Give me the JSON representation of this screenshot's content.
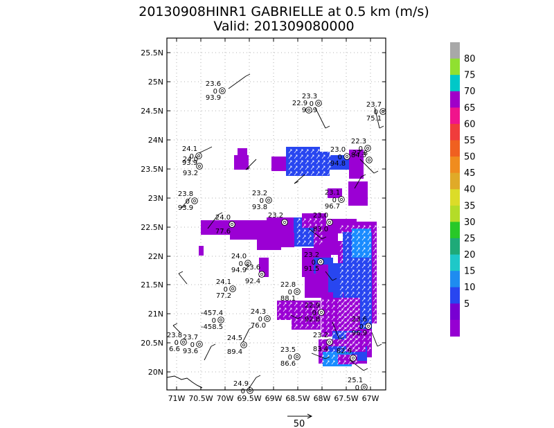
{
  "title": "20130908HINR1 GABRIELLE at 0.5 km (m/s)",
  "subtitle": "Valid: 201309080000",
  "map": {
    "lon_min": -71.25,
    "lon_max": -66.75,
    "lat_min": 19.7,
    "lat_max": 25.8,
    "x_ticks": [
      "71W",
      "70.5W",
      "70W",
      "69.5W",
      "69W",
      "68.5W",
      "68W",
      "67.5W",
      "67W"
    ],
    "y_ticks": [
      "20N",
      "20.5N",
      "21N",
      "21.5N",
      "22N",
      "22.5N",
      "23N",
      "23.5N",
      "24N",
      "24.5N",
      "25N",
      "25.5N"
    ]
  },
  "colorbar": {
    "labels": [
      "5",
      "10",
      "15",
      "20",
      "25",
      "30",
      "35",
      "40",
      "45",
      "50",
      "55",
      "60",
      "65",
      "70",
      "75",
      "80"
    ],
    "colors": [
      "#9b00d4",
      "#7a00cc",
      "#2244ee",
      "#1a8cff",
      "#00b4e6",
      "#00c8b4",
      "#00c060",
      "#00d000",
      "#90dc00",
      "#e0e000",
      "#e8b400",
      "#f08000",
      "#f05030",
      "#f00040",
      "#f0148c",
      "#a000c8",
      "#00c8c8",
      "#90e030",
      "#a8a8a8"
    ]
  },
  "vector_scale": {
    "label": "50"
  },
  "stations": [
    {
      "t": "23.6",
      "z": "0",
      "rh": "93.9"
    },
    {
      "t": "23.3",
      "z": "0",
      "rh": "91.9"
    },
    {
      "t": "22.9",
      "z": "",
      "rh": ""
    },
    {
      "t": "23.7",
      "z": "0",
      "rh": "75.1"
    },
    {
      "t": "24.1",
      "z": "0",
      "rh": "93.9"
    },
    {
      "t": "24.0",
      "z": "",
      "rh": "93.2"
    },
    {
      "t": "22.3",
      "z": "0",
      "rh": "84.3"
    },
    {
      "t": "23.0",
      "z": "0",
      "rh": "94.8"
    },
    {
      "t": "27.8",
      "z": "",
      "rh": ""
    },
    {
      "t": "23.8",
      "z": "0",
      "rh": "93.9"
    },
    {
      "t": "23.2",
      "z": "0",
      "rh": "93.8"
    },
    {
      "t": "23.1",
      "z": "0",
      "rh": "96.7"
    },
    {
      "t": "24.0",
      "z": "",
      "rh": "77.6"
    },
    {
      "t": "23.2",
      "z": "",
      "rh": ""
    },
    {
      "t": "23.0",
      "z": "",
      "rh": "83.0"
    },
    {
      "t": "23.2",
      "z": "0",
      "rh": "91.5"
    },
    {
      "t": "24.0",
      "z": "0",
      "rh": "94.9"
    },
    {
      "t": "23.6",
      "z": "",
      "rh": "92.4"
    },
    {
      "t": "24.1",
      "z": "0",
      "rh": "77.2"
    },
    {
      "t": "22.8",
      "z": "0",
      "rh": "88.1"
    },
    {
      "t": "22.9",
      "z": "0",
      "rh": "92.8"
    },
    {
      "t": "-457.4",
      "z": "0",
      "rh": "-458.5"
    },
    {
      "t": "24.3",
      "z": "0",
      "rh": "76.0"
    },
    {
      "t": "23.6",
      "z": "0",
      "rh": "96.9"
    },
    {
      "t": "23.7",
      "z": "0",
      "rh": "93.6"
    },
    {
      "t": "23.8",
      "z": "0",
      "rh": "6.6"
    },
    {
      "t": "24.5",
      "z": "",
      "rh": "89.4"
    },
    {
      "t": "23.2",
      "z": "",
      "rh": "83.4"
    },
    {
      "t": "23.5",
      "z": "0",
      "rh": "86.6"
    },
    {
      "t": "82.9",
      "z": "",
      "rh": ""
    },
    {
      "t": "25.1",
      "z": "0",
      "rh": ""
    },
    {
      "t": "24.9",
      "z": "0",
      "rh": ""
    }
  ]
}
